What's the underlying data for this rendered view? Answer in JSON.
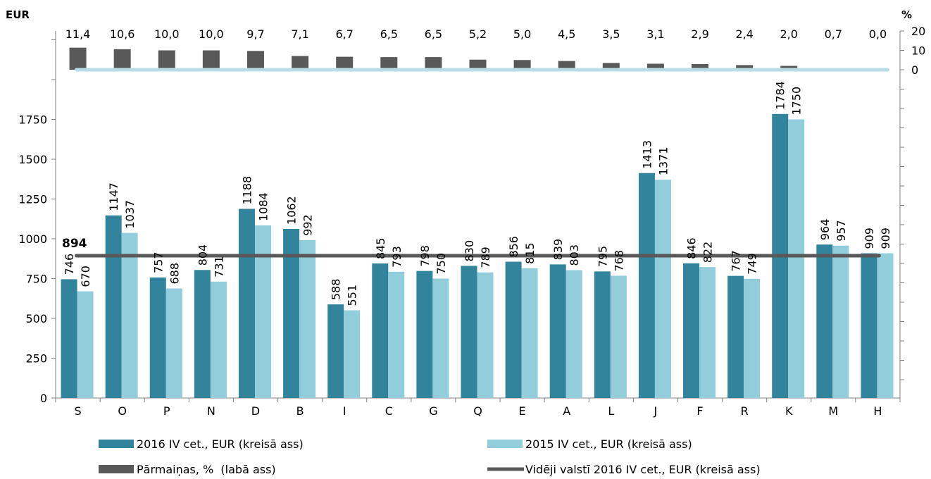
{
  "chart_data": {
    "type": "bar",
    "left_axis_unit": "EUR",
    "right_axis_unit": "%",
    "categories": [
      "S",
      "O",
      "P",
      "N",
      "D",
      "B",
      "I",
      "C",
      "G",
      "Q",
      "E",
      "A",
      "L",
      "J",
      "F",
      "R",
      "K",
      "M",
      "H"
    ],
    "series": [
      {
        "name": "2016 IV cet., EUR (kreisā ass)",
        "axis": "left",
        "color": "#31849b",
        "values": [
          746,
          1147,
          757,
          804,
          1188,
          1062,
          588,
          845,
          798,
          830,
          856,
          839,
          795,
          1413,
          846,
          767,
          1784,
          964,
          909
        ],
        "labels": [
          "746",
          "1147",
          "757",
          "804",
          "1188",
          "1062",
          "588",
          "845",
          "798",
          "830",
          "856",
          "839",
          "795",
          "1413",
          "846",
          "767",
          "1784",
          "964",
          "909"
        ]
      },
      {
        "name": "2015 IV cet., EUR (kreisā ass)",
        "axis": "left",
        "color": "#92cddc",
        "values": [
          670,
          1037,
          688,
          731,
          1084,
          992,
          551,
          793,
          750,
          789,
          815,
          803,
          768,
          1371,
          822,
          749,
          1750,
          957,
          909
        ],
        "labels": [
          "670",
          "1037",
          "688",
          "731",
          "1084",
          "992",
          "551",
          "793",
          "750",
          "789",
          "815",
          "803",
          "768",
          "1371",
          "822",
          "749",
          "1750",
          "957",
          "909"
        ]
      },
      {
        "name": "Pārmaiņas, %  (labā ass)",
        "axis": "right",
        "color": "#595959",
        "values": [
          11.4,
          10.6,
          10.0,
          10.0,
          9.7,
          7.1,
          6.7,
          6.5,
          6.5,
          5.2,
          5.0,
          4.5,
          3.5,
          3.1,
          2.9,
          2.4,
          2.0,
          0.7,
          0.0
        ],
        "labels": [
          "11,4",
          "10,6",
          "10,0",
          "10,0",
          "9,7",
          "7,1",
          "6,7",
          "6,5",
          "6,5",
          "5,2",
          "5,0",
          "4,5",
          "3,5",
          "3,1",
          "2,9",
          "2,4",
          "2,0",
          "0,7",
          "0,0"
        ]
      }
    ],
    "reference_line": {
      "name": "Vidēji valstī 2016 IV cet., EUR (kreisā ass)",
      "value": 894,
      "label": "894",
      "color": "#595959"
    },
    "left_axis": {
      "ylim": [
        0,
        2000
      ],
      "ticks": [
        "0",
        "250",
        "500",
        "750",
        "1000",
        "1250",
        "1500",
        "1750"
      ],
      "tick_values": [
        0,
        250,
        500,
        750,
        1000,
        1250,
        1500,
        1750
      ]
    },
    "right_axis": {
      "ticks": [
        "0",
        "10",
        "20"
      ],
      "tick_values": [
        0,
        10,
        20
      ]
    },
    "pct_zero_line_color": "#b7dee8",
    "legend_position": "bottom",
    "grid": false
  }
}
